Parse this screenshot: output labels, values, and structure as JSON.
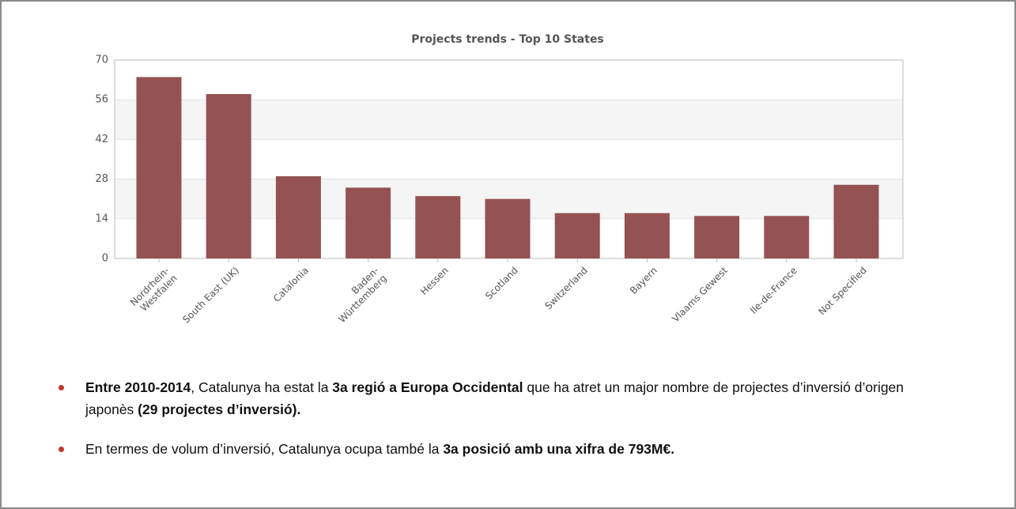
{
  "chart_data": {
    "type": "bar",
    "title": "Projects trends - Top 10 States",
    "categories": [
      "Nordrhein-\nWestfalen",
      "South East (UK)",
      "Catalonia",
      "Baden-\nWürttemberg",
      "Hessen",
      "Scotland",
      "Switzerland",
      "Bayern",
      "Vlaams Gewest",
      "Ile-de-France",
      "Not Specified"
    ],
    "values": [
      64,
      58,
      29,
      25,
      22,
      21,
      16,
      16,
      15,
      15,
      26
    ],
    "color": "#955252",
    "ylim": [
      0,
      70
    ],
    "yticks": [
      0,
      14,
      28,
      42,
      56,
      70
    ],
    "grid": true,
    "alternate_bands": true
  },
  "bullets": [
    [
      {
        "text": "Entre 2010-2014",
        "bold": true
      },
      {
        "text": ", Catalunya ha estat la "
      },
      {
        "text": "3a regió a Europa Occidental",
        "bold": true
      },
      {
        "text": " que ha atret un major nombre de projectes d’inversió d’origen japonès "
      },
      {
        "text": "(29 projectes d’inversió).",
        "bold": true
      }
    ],
    [
      {
        "text": "En termes de volum d’inversió, Catalunya ocupa també la "
      },
      {
        "text": "3a posició amb una xifra de 793M€.",
        "bold": true
      }
    ]
  ]
}
